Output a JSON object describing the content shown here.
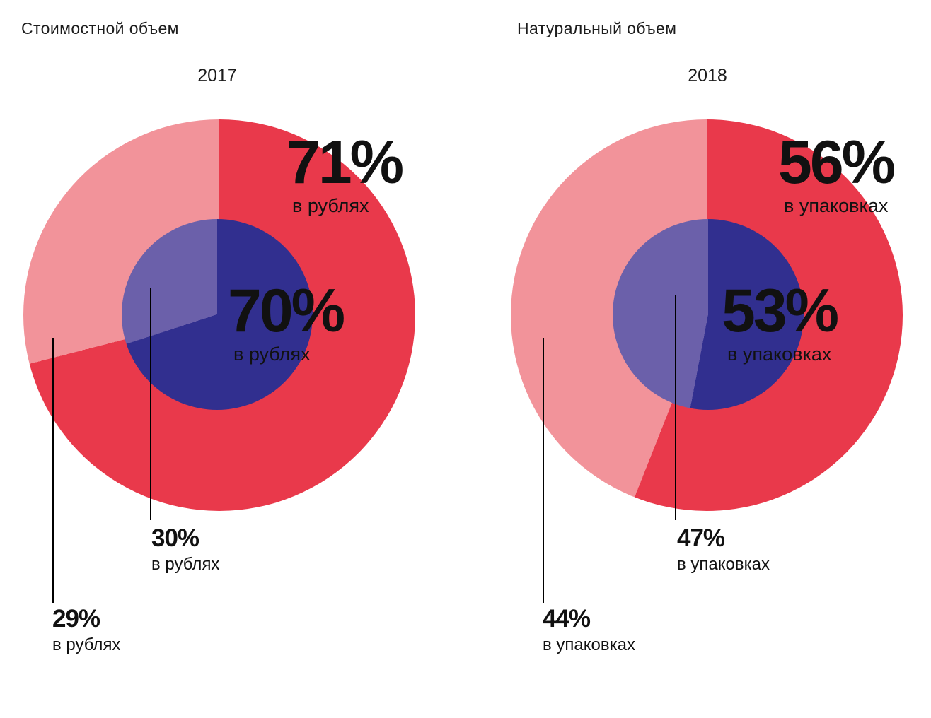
{
  "page": {
    "background": "#ffffff"
  },
  "chart_data": [
    {
      "type": "pie",
      "title": "Стоимостной объем",
      "year": "2017",
      "legend": "none",
      "rings": [
        {
          "name": "outer",
          "unit": "в рублях",
          "segments": [
            {
              "value": 71,
              "label": "71%",
              "color": "#e9394b"
            },
            {
              "value": 29,
              "label": "29%",
              "color": "#f2939a"
            }
          ]
        },
        {
          "name": "inner",
          "unit": "в рублях",
          "segments": [
            {
              "value": 70,
              "label": "70%",
              "color": "#312f8f"
            },
            {
              "value": 30,
              "label": "30%",
              "color": "#6b60aa"
            }
          ]
        }
      ]
    },
    {
      "type": "pie",
      "title": "Натуральный объем",
      "year": "2018",
      "legend": "none",
      "rings": [
        {
          "name": "outer",
          "unit": "в упаковках",
          "segments": [
            {
              "value": 56,
              "label": "56%",
              "color": "#e9394b"
            },
            {
              "value": 44,
              "label": "44%",
              "color": "#f2939a"
            }
          ]
        },
        {
          "name": "inner",
          "unit": "в упаковках",
          "segments": [
            {
              "value": 53,
              "label": "53%",
              "color": "#312f8f"
            },
            {
              "value": 47,
              "label": "47%",
              "color": "#6b60aa"
            }
          ]
        }
      ]
    }
  ]
}
